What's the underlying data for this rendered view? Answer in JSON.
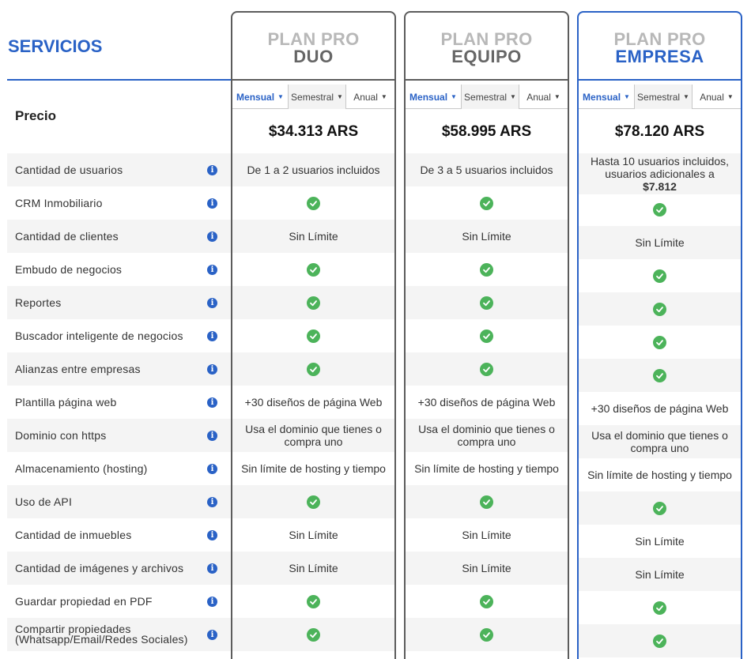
{
  "header": {
    "title": "SERVICIOS"
  },
  "price_label": "Precio",
  "period_options": [
    "Mensual",
    "Semestral",
    "Anual"
  ],
  "features": [
    "Cantidad de usuarios",
    "CRM Inmobiliario",
    "Cantidad de clientes",
    "Embudo de negocios",
    "Reportes",
    "Buscador inteligente de negocios",
    "Alianzas entre empresas",
    "Plantilla página web",
    "Dominio con https",
    "Almacenamiento (hosting)",
    "Uso de API",
    "Cantidad de inmuebles",
    "Cantidad de imágenes y archivos",
    "Guardar propiedad en PDF",
    "Compartir propiedades (Whatsapp/Email/Redes Sociales)"
  ],
  "plans": [
    {
      "prefix": "PLAN PRO",
      "name": "DUO",
      "price": "$34.313 ARS",
      "values": [
        "De 1 a 2 usuarios incluidos",
        "check",
        "Sin Límite",
        "check",
        "check",
        "check",
        "check",
        "+30 diseños de página Web",
        "Usa el dominio que tienes o compra uno",
        "Sin límite de hosting y tiempo",
        "check",
        "Sin Límite",
        "Sin Límite",
        "check",
        "check"
      ]
    },
    {
      "prefix": "PLAN PRO",
      "name": "EQUIPO",
      "price": "$58.995 ARS",
      "values": [
        "De 3 a 5 usuarios incluidos",
        "check",
        "Sin Límite",
        "check",
        "check",
        "check",
        "check",
        "+30 diseños de página Web",
        "Usa el dominio que tienes o compra uno",
        "Sin límite de hosting y tiempo",
        "check",
        "Sin Límite",
        "Sin Límite",
        "check",
        "check"
      ]
    },
    {
      "prefix": "PLAN PRO",
      "name": "EMPRESA",
      "price": "$78.120 ARS",
      "users_text": "Hasta 10 usuarios incluidos, usuarios adicionales a",
      "users_extra_price": "$7.812",
      "values": [
        "",
        "check",
        "Sin Límite",
        "check",
        "check",
        "check",
        "check",
        "+30 diseños de página Web",
        "Usa el dominio que tienes o compra uno",
        "Sin límite de hosting y tiempo",
        "check",
        "Sin Límite",
        "Sin Límite",
        "check",
        "check"
      ]
    }
  ],
  "colors": {
    "accent": "#2a62c6",
    "check": "#4cb35a",
    "border": "#5c5c5c"
  },
  "icons": {
    "info": "info-icon",
    "check": "check-circle-icon",
    "caret": "caret-down-icon"
  }
}
